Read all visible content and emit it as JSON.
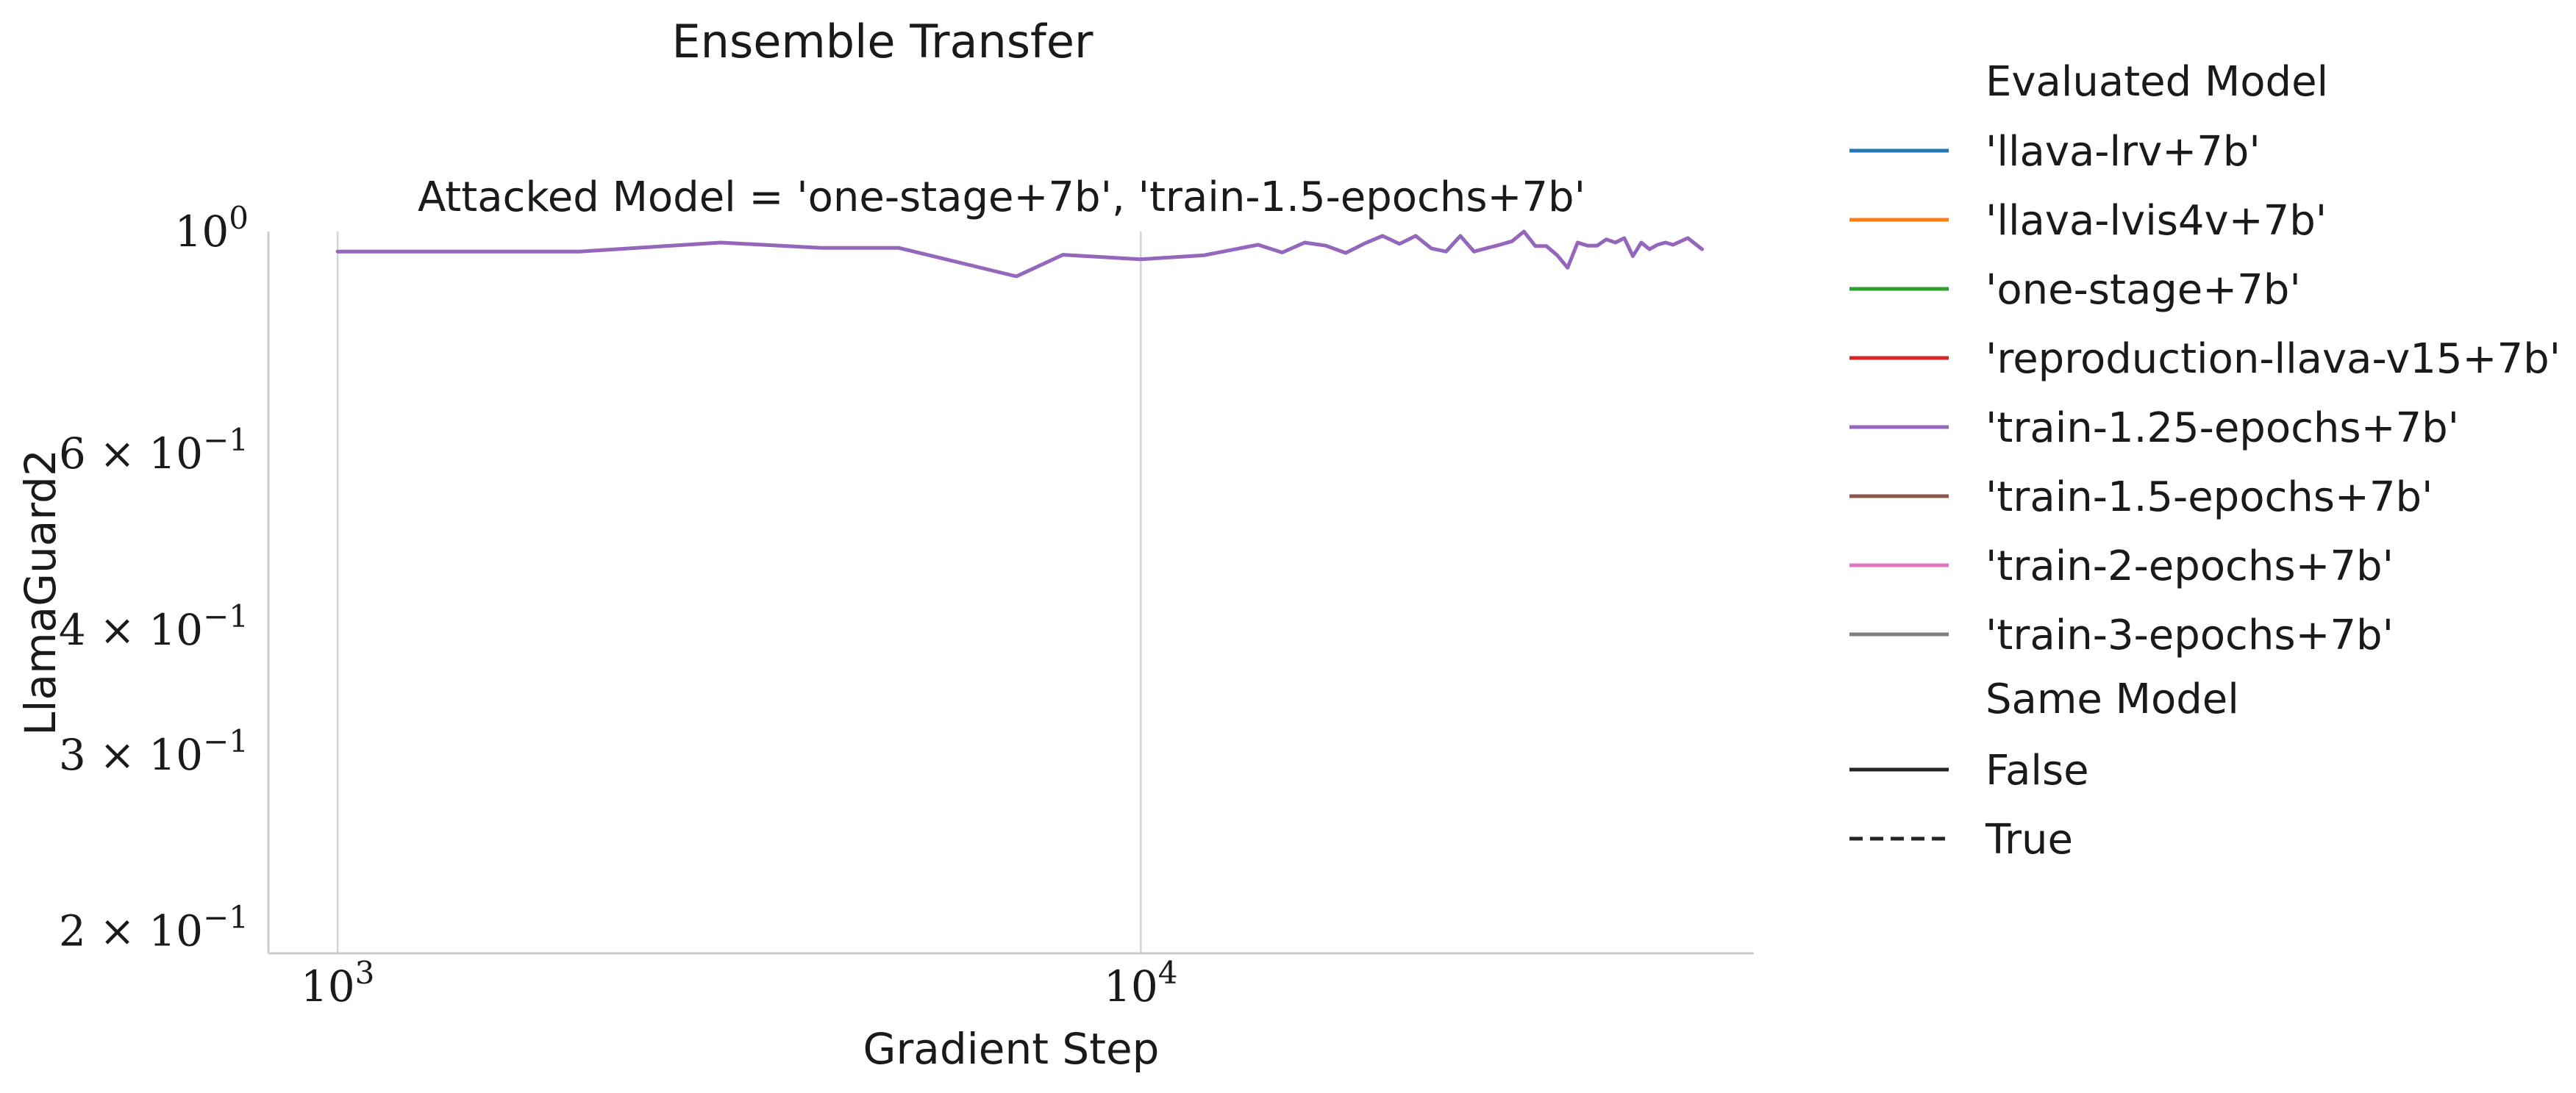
{
  "chart_data": {
    "type": "line",
    "title": "Ensemble Transfer",
    "subtitle": "Attacked Model = 'one-stage+7b', 'train-1.5-epochs+7b'",
    "xlabel": "Gradient Step",
    "ylabel": "LlamaGuard2",
    "x_scale": "log",
    "y_scale": "log",
    "xlim": [
      820,
      58000
    ],
    "ylim": [
      0.19,
      1.0
    ],
    "grid": "vertical",
    "x_ticks": [
      {
        "value": 1000,
        "base": "10",
        "exp": "3"
      },
      {
        "value": 10000,
        "base": "10",
        "exp": "4"
      }
    ],
    "y_ticks": [
      {
        "value": 1.0,
        "mant": "",
        "base": "10",
        "exp": "0"
      },
      {
        "value": 0.6,
        "mant": "6 × ",
        "base": "10",
        "exp": "−1"
      },
      {
        "value": 0.4,
        "mant": "4 × ",
        "base": "10",
        "exp": "−1"
      },
      {
        "value": 0.3,
        "mant": "3 × ",
        "base": "10",
        "exp": "−1"
      },
      {
        "value": 0.2,
        "mant": "2 × ",
        "base": "10",
        "exp": "−1"
      }
    ],
    "legend_position": "right-outside",
    "legend": {
      "hue_title": "Evaluated Model",
      "hue_entries": [
        {
          "label": "'llava-lrv+7b'",
          "color": "#1f77b4"
        },
        {
          "label": "'llava-lvis4v+7b'",
          "color": "#ff7f0e"
        },
        {
          "label": "'one-stage+7b'",
          "color": "#2ca02c"
        },
        {
          "label": "'reproduction-llava-v15+7b'",
          "color": "#d62728"
        },
        {
          "label": "'train-1.25-epochs+7b'",
          "color": "#9467bd"
        },
        {
          "label": "'train-1.5-epochs+7b'",
          "color": "#8c564b"
        },
        {
          "label": "'train-2-epochs+7b'",
          "color": "#e377c2"
        },
        {
          "label": "'train-3-epochs+7b'",
          "color": "#7f7f7f"
        }
      ],
      "style_title": "Same Model",
      "style_entries": [
        {
          "label": "False",
          "dash": "solid"
        },
        {
          "label": "True",
          "dash": "dashed"
        }
      ]
    },
    "series": [
      {
        "color": "#9467bd",
        "dash": "solid",
        "x": [
          1000,
          2000,
          3000,
          4000,
          5000,
          7000,
          8000,
          10000,
          12000,
          14000,
          15000,
          16000,
          17000,
          18000,
          19000,
          20000,
          21000,
          22000,
          23000,
          24000,
          25000,
          26000,
          28000,
          29000,
          30000,
          31000,
          32000,
          33000,
          34000,
          35000,
          36000,
          37000,
          38000,
          39000,
          40000,
          41000,
          42000,
          43000,
          44000,
          45000,
          46000,
          48000,
          50000
        ],
        "y": [
          0.955,
          0.955,
          0.975,
          0.963,
          0.963,
          0.902,
          0.948,
          0.938,
          0.947,
          0.97,
          0.953,
          0.975,
          0.968,
          0.952,
          0.973,
          0.99,
          0.972,
          0.99,
          0.962,
          0.955,
          0.99,
          0.955,
          0.97,
          0.978,
          1.0,
          0.967,
          0.967,
          0.947,
          0.92,
          0.975,
          0.968,
          0.968,
          0.982,
          0.975,
          0.985,
          0.945,
          0.975,
          0.96,
          0.97,
          0.975,
          0.97,
          0.985,
          0.96
        ]
      }
    ]
  }
}
